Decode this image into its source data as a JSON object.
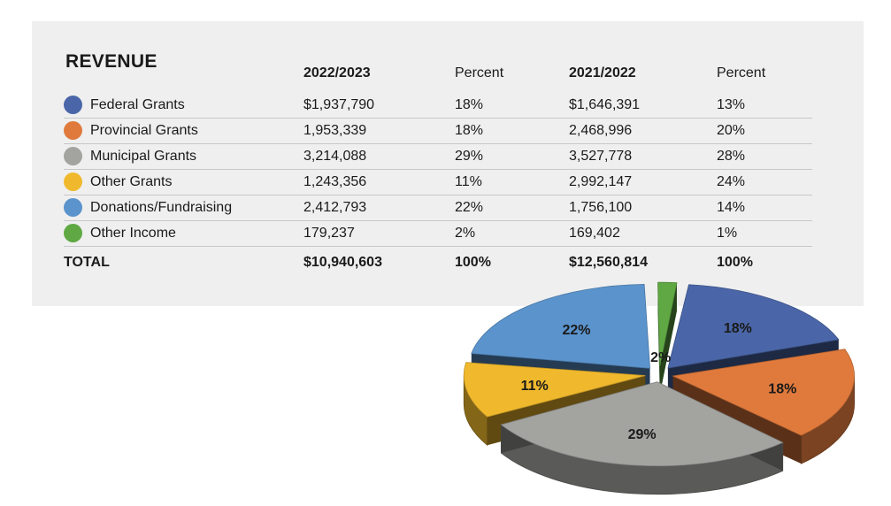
{
  "title": "REVENUE",
  "columns": {
    "year1": "2022/2023",
    "pct1": "Percent",
    "year2": "2021/2022",
    "pct2": "Percent"
  },
  "rows": [
    {
      "label": "Federal Grants",
      "v1": "$1,937,790",
      "p1": "18%",
      "v2": "$1,646,391",
      "p2": "13%",
      "color": "#4a66a8"
    },
    {
      "label": "Provincial Grants",
      "v1": "1,953,339",
      "p1": "18%",
      "v2": "2,468,996",
      "p2": "20%",
      "color": "#e07a3c"
    },
    {
      "label": "Municipal Grants",
      "v1": "3,214,088",
      "p1": "29%",
      "v2": "3,527,778",
      "p2": "28%",
      "color": "#a3a3a0"
    },
    {
      "label": "Other Grants",
      "v1": "1,243,356",
      "p1": "11%",
      "v2": "2,992,147",
      "p2": "24%",
      "color": "#f0b92d"
    },
    {
      "label": "Donations/Fundraising",
      "v1": "2,412,793",
      "p1": "22%",
      "v2": "1,756,100",
      "p2": "14%",
      "color": "#5b93cc"
    },
    {
      "label": "Other Income",
      "v1": "179,237",
      "p1": "2%",
      "v2": "169,402",
      "p2": "1%",
      "color": "#5fa843"
    }
  ],
  "total": {
    "label": "TOTAL",
    "v1": "$10,940,603",
    "p1": "100%",
    "v2": "$12,560,814",
    "p2": "100%"
  },
  "chart_data": {
    "type": "pie",
    "categories": [
      "Federal Grants",
      "Provincial Grants",
      "Municipal Grants",
      "Other Grants",
      "Donations/Fundraising",
      "Other Income"
    ],
    "values": [
      18,
      18,
      29,
      11,
      22,
      2
    ],
    "labels": [
      "18%",
      "18%",
      "29%",
      "11%",
      "22%",
      "2%"
    ],
    "colors": [
      "#4a66a8",
      "#e07a3c",
      "#a3a3a0",
      "#f0b92d",
      "#5b93cc",
      "#5fa843"
    ]
  }
}
